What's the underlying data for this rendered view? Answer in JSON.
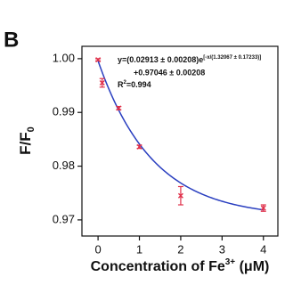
{
  "panel_label": "B",
  "chart_data": {
    "type": "scatter",
    "x": [
      0,
      0.1,
      0.5,
      1,
      2,
      4
    ],
    "series": [
      {
        "color": "#e0304a",
        "values": [
          0.9998,
          0.9955,
          0.9908,
          0.9836,
          0.9745,
          0.9722
        ],
        "errors": [
          0.0002,
          0.0008,
          0.0003,
          0.0003,
          0.0017,
          0.0006
        ]
      }
    ],
    "fit": {
      "color": "#2a3fc0",
      "A": 0.02913,
      "t": 1.32067,
      "y0": 0.97046
    },
    "xlim": [
      -0.39,
      4.35
    ],
    "ylim": [
      0.967,
      1.0023
    ],
    "xticks": [
      0,
      1,
      2,
      3,
      4
    ],
    "yticks": [
      {
        "value": 1.0,
        "label": "1.00"
      },
      0.99,
      0.98,
      0.97
    ],
    "x_label": [
      "Concentration of Fe",
      "3+",
      " (μM)"
    ],
    "y_label": [
      "F/F",
      "0"
    ],
    "annotation": [
      "y=(0.02913 ± 0.00208)e",
      "[-x/(1.32067 ± 0.17233)]",
      "+0.97046 ± 0.00208",
      "R",
      "2",
      "=0.994"
    ]
  }
}
